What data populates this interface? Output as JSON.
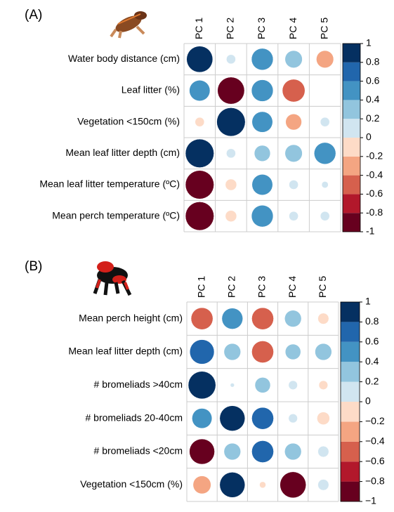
{
  "chart_data": [
    {
      "type": "corrplot",
      "title": "(A)",
      "columns": [
        "PC 1",
        "PC 2",
        "PC 3",
        "PC 4",
        "PC 5"
      ],
      "rows": [
        "Water body distance (cm)",
        "Leaf litter (%)",
        "Vegetation <150cm (%)",
        "Mean leaf litter depth (cm)",
        "Mean leaf litter temperature (ºC)",
        "Mean perch temperature (ºC)"
      ],
      "values": [
        [
          0.8,
          0.1,
          0.55,
          0.35,
          -0.35
        ],
        [
          0.5,
          -0.85,
          0.55,
          -0.6,
          0
        ],
        [
          -0.1,
          0.95,
          0.5,
          -0.3,
          0.1
        ],
        [
          0.95,
          0.1,
          0.3,
          0.35,
          0.55
        ],
        [
          -0.95,
          -0.15,
          0.5,
          0.1,
          0.05
        ],
        [
          -0.95,
          -0.15,
          0.55,
          0.1,
          0.1
        ]
      ],
      "colors": [
        "#67001F",
        "#B2182B",
        "#D6604D",
        "#F4A582",
        "#FDDBC7",
        "#D1E5F0",
        "#92C5DE",
        "#4393C3",
        "#2166AC",
        "#053061"
      ],
      "clim": [
        -1,
        1
      ],
      "cticks": [
        1,
        0.8,
        0.6,
        0.4,
        0.2,
        0,
        -0.2,
        -0.4,
        -0.6,
        -0.8,
        -1
      ]
    },
    {
      "type": "corrplot",
      "title": "(B)",
      "columns": [
        "PC 1",
        "PC 2",
        "PC 3",
        "PC 4",
        "PC 5"
      ],
      "rows": [
        "Mean perch height (cm)",
        "Mean leaf litter depth (cm)",
        "# bromeliads >40cm",
        "# bromeliads 20-40cm",
        "# bromeliads <20cm",
        "Vegetation <150cm (%)"
      ],
      "values": [
        [
          -0.6,
          0.55,
          -0.6,
          0.35,
          -0.15
        ],
        [
          0.75,
          0.35,
          -0.6,
          0.3,
          0.35
        ],
        [
          0.95,
          0.02,
          0.3,
          0.1,
          -0.1
        ],
        [
          0.5,
          0.8,
          0.6,
          0.1,
          -0.2
        ],
        [
          -0.8,
          0.35,
          0.6,
          0.35,
          0.15
        ],
        [
          -0.4,
          0.8,
          -0.05,
          -0.85,
          0.15
        ]
      ],
      "colors": [
        "#67001F",
        "#B2182B",
        "#D6604D",
        "#F4A582",
        "#FDDBC7",
        "#D1E5F0",
        "#92C5DE",
        "#4393C3",
        "#2166AC",
        "#053061"
      ],
      "clim": [
        -1,
        1
      ],
      "cticks": [
        1,
        0.8,
        0.6,
        0.4,
        0.2,
        0,
        {
          "value": -0.2,
          "label": "−0.2"
        },
        {
          "value": -0.4,
          "label": "−0.4"
        },
        {
          "value": -0.6,
          "label": "−0.6"
        },
        {
          "value": -0.8,
          "label": "−0.8"
        },
        {
          "value": -1,
          "label": "−1"
        }
      ]
    }
  ]
}
